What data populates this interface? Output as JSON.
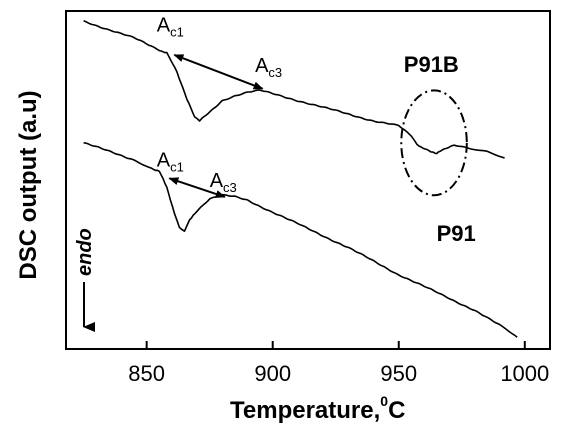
{
  "chart_data": {
    "type": "line",
    "title": "",
    "xlabel": "Temperature,",
    "xlabel_unit_sup": "0",
    "xlabel_unit": "C",
    "ylabel": "DSC output (a.u)",
    "xlim": [
      818,
      1010
    ],
    "ylim": [
      0,
      100
    ],
    "xticks": [
      850,
      900,
      950,
      1000
    ],
    "xtick_labels": [
      "850",
      "900",
      "950",
      "1000"
    ],
    "yticks": [],
    "grid": false,
    "legend": "none",
    "series": [
      {
        "name": "P91B",
        "x": [
          825,
          835,
          845,
          855,
          858,
          862,
          866,
          869,
          871,
          875,
          880,
          885,
          890,
          895,
          900,
          910,
          920,
          930,
          940,
          950,
          955,
          958,
          962,
          965,
          968,
          972,
          978,
          985,
          992
        ],
        "y": [
          97,
          94.5,
          92,
          88.5,
          87.5,
          82,
          74,
          68.5,
          67.5,
          70,
          73.5,
          75,
          76,
          76.5,
          75.5,
          73.5,
          71.5,
          69.5,
          67.5,
          66,
          63,
          60,
          58.5,
          58,
          59,
          60.5,
          59.5,
          58.5,
          56.5
        ]
      },
      {
        "name": "P91",
        "x": [
          825,
          835,
          845,
          852,
          855,
          858,
          861,
          863,
          865,
          867,
          870,
          875,
          880,
          885,
          890,
          900,
          910,
          920,
          930,
          940,
          950,
          960,
          970,
          980,
          990,
          997
        ],
        "y": [
          61,
          58.5,
          56,
          53.5,
          52.5,
          48,
          40,
          36,
          35,
          38,
          41,
          44.5,
          45.5,
          45,
          44,
          40.5,
          37,
          33.5,
          30,
          26,
          22,
          18.5,
          15,
          11.5,
          7,
          3.5
        ]
      }
    ],
    "series_labels": [
      {
        "text": "P91B",
        "x": 952,
        "y": 82
      },
      {
        "text": "P91",
        "x": 965,
        "y": 32
      }
    ],
    "annotations": [
      {
        "base": "A",
        "sub": "c1",
        "x": 854,
        "y": 94
      },
      {
        "base": "A",
        "sub": "c3",
        "x": 893,
        "y": 82
      },
      {
        "base": "A",
        "sub": "c1",
        "x": 854,
        "y": 54
      },
      {
        "base": "A",
        "sub": "c3",
        "x": 875,
        "y": 48
      }
    ],
    "arrows": [
      {
        "x1": 861,
        "y1": 87,
        "x2": 896,
        "y2": 77
      },
      {
        "x1": 859,
        "y1": 50.5,
        "x2": 881,
        "y2": 45
      }
    ],
    "ellipse": {
      "cx": 964,
      "cy": 61,
      "rx": 13,
      "ry": 15.5
    },
    "endo_label": "endo"
  }
}
